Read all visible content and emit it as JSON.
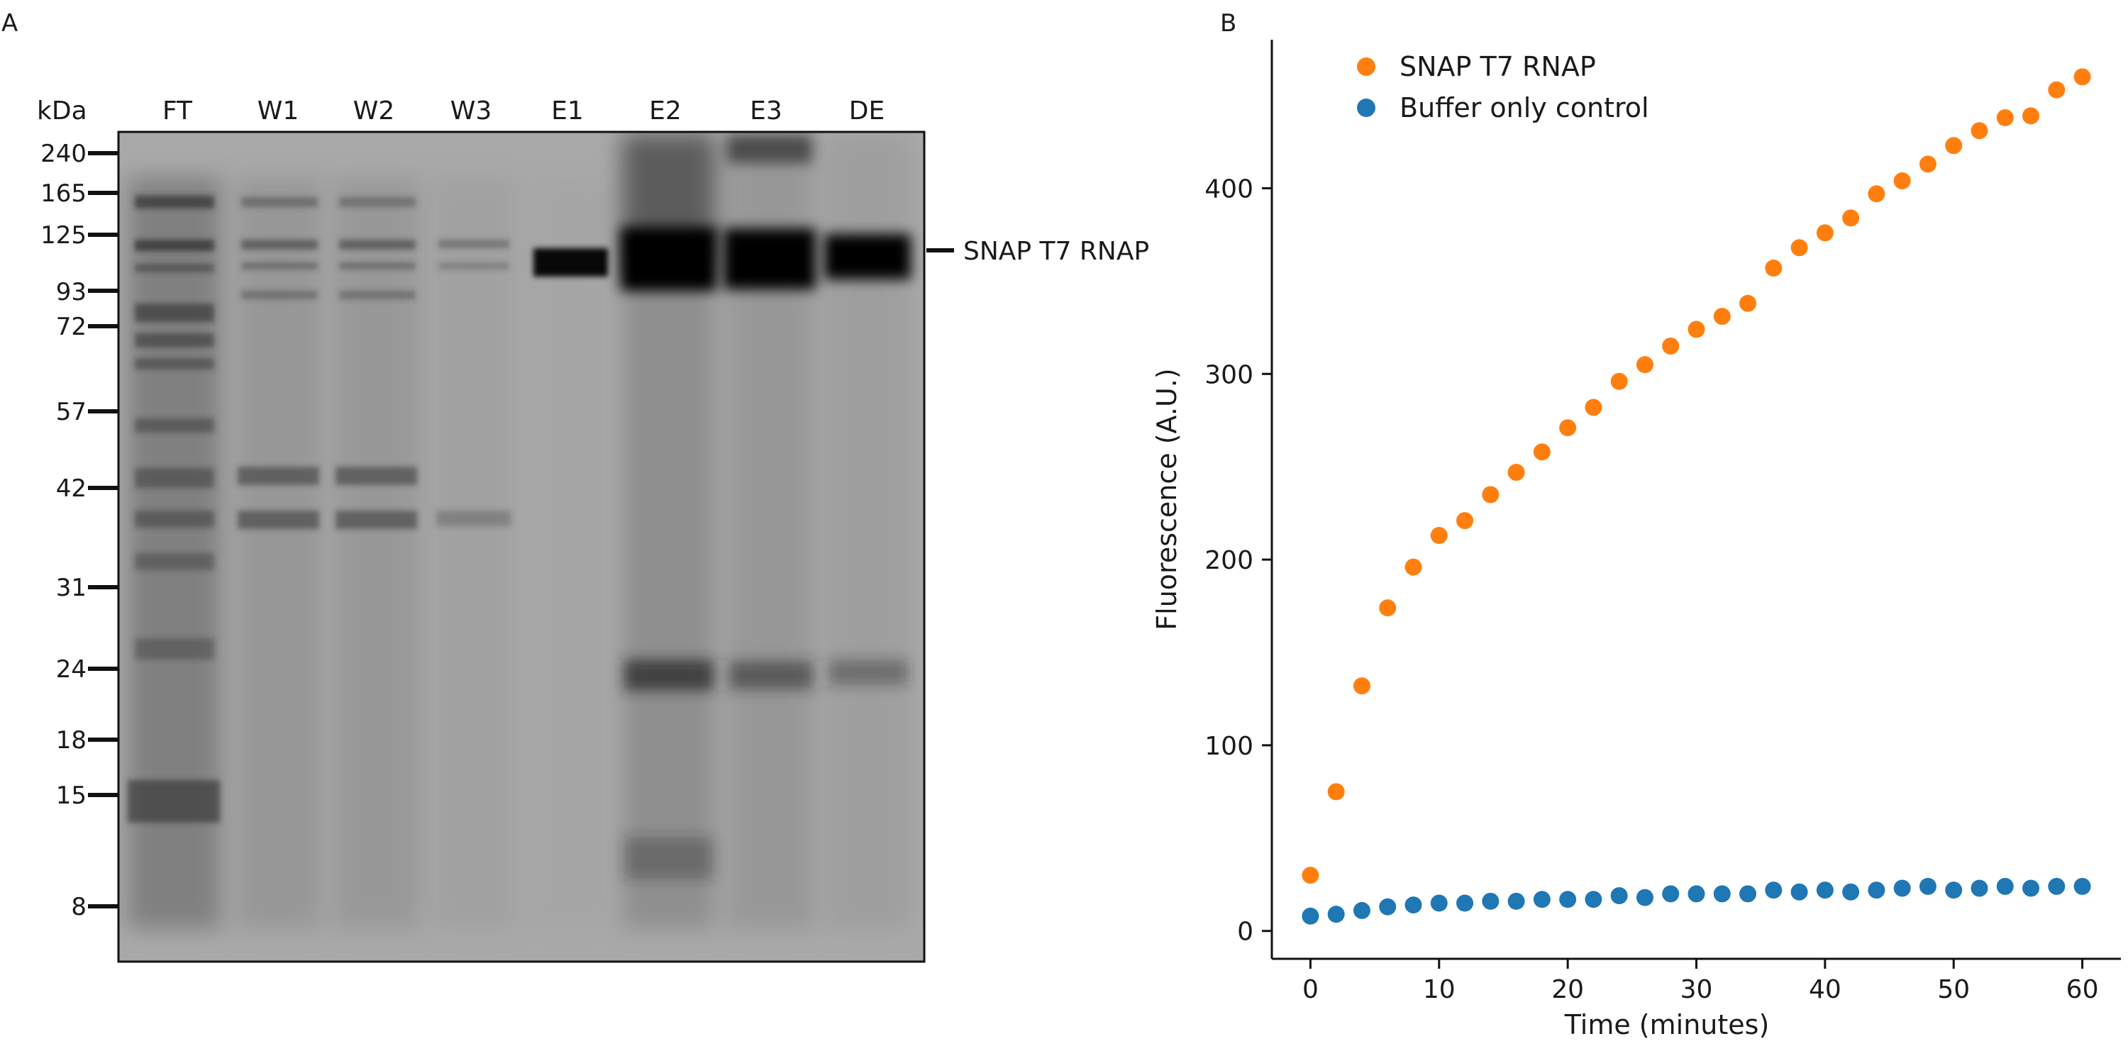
{
  "panels": {
    "a_label": "A",
    "b_label": "B"
  },
  "gel": {
    "unit_label": "kDa",
    "lanes": [
      "FT",
      "W1",
      "W2",
      "W3",
      "E1",
      "E2",
      "E3",
      "DE"
    ],
    "markers": [
      "240",
      "165",
      "125",
      "93",
      "72",
      "57",
      "42",
      "31",
      "24",
      "18",
      "15",
      "8"
    ],
    "band_label": "SNAP T7 RNAP"
  },
  "chart_data": {
    "type": "scatter",
    "title": "",
    "xlabel": "Time (minutes)",
    "ylabel": "Fluorescence (A.U.)",
    "xlim": [
      -3,
      63
    ],
    "ylim": [
      -15,
      480
    ],
    "xticks": [
      0,
      10,
      20,
      30,
      40,
      50,
      60
    ],
    "yticks": [
      0,
      100,
      200,
      300,
      400
    ],
    "legend_position": "top-left",
    "x": [
      0,
      2,
      4,
      6,
      8,
      10,
      12,
      14,
      16,
      18,
      20,
      22,
      24,
      26,
      28,
      30,
      32,
      34,
      36,
      38,
      40,
      42,
      44,
      46,
      48,
      50,
      52,
      54,
      56,
      58,
      60
    ],
    "series": [
      {
        "name": "SNAP T7 RNAP",
        "color": "#ff7f0e",
        "values": [
          30,
          75,
          132,
          174,
          196,
          213,
          221,
          235,
          247,
          258,
          271,
          282,
          296,
          305,
          315,
          324,
          331,
          338,
          357,
          368,
          376,
          384,
          397,
          404,
          413,
          423,
          431,
          438,
          439,
          453,
          460
        ]
      },
      {
        "name": "Buffer only control",
        "color": "#1f77b4",
        "values": [
          8,
          9,
          11,
          13,
          14,
          15,
          15,
          16,
          16,
          17,
          17,
          17,
          19,
          18,
          20,
          20,
          20,
          20,
          22,
          21,
          22,
          21,
          22,
          23,
          24,
          22,
          23,
          24,
          23,
          24,
          24
        ]
      }
    ]
  }
}
